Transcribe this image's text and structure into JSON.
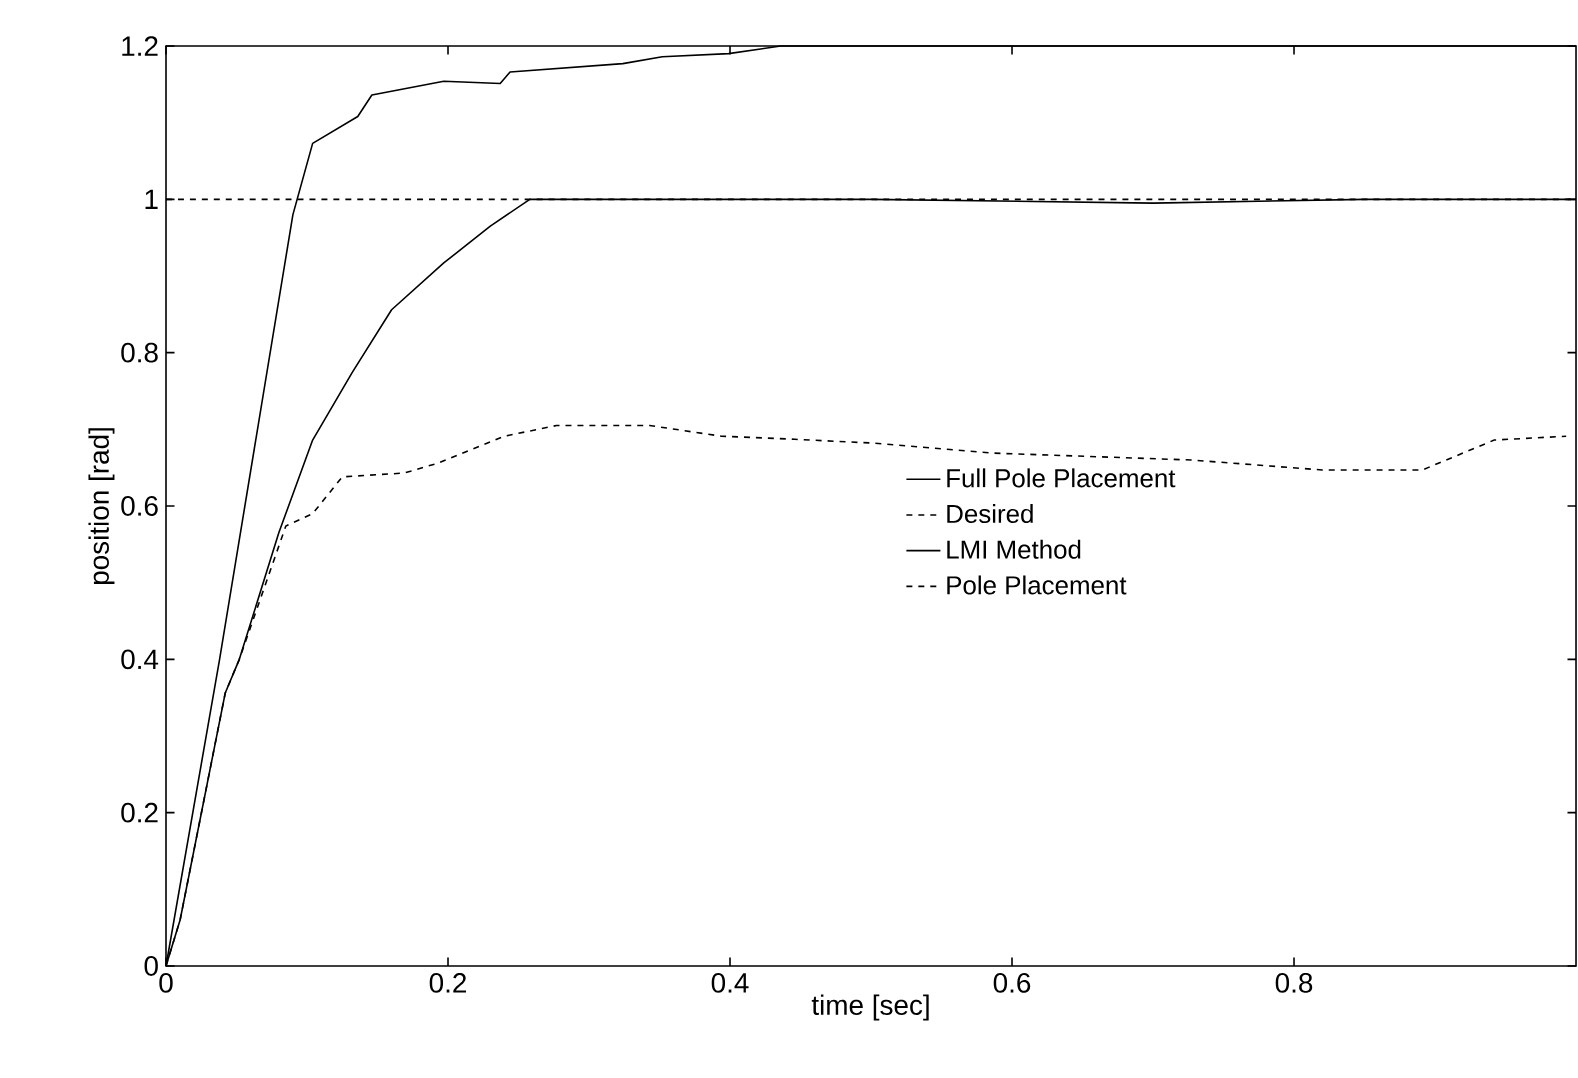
{
  "chart_data": {
    "type": "line",
    "xlabel": "time [sec]",
    "ylabel": "position [rad]",
    "xlim": [
      0,
      1
    ],
    "ylim": [
      0,
      1.2
    ],
    "xticks": [
      0,
      0.2,
      0.4,
      0.6,
      0.8
    ],
    "yticks": [
      0,
      0.2,
      0.4,
      0.6,
      0.8,
      1,
      1.2
    ],
    "legend": "right",
    "grid": false,
    "marker": "none",
    "series": [
      {
        "name": "Full Pole Placement",
        "color": "#000000",
        "line_style": "solid",
        "x": [
          0,
          0.038,
          0.09,
          0.104,
          0.136,
          0.146,
          0.197,
          0.237,
          0.244,
          0.324,
          0.352,
          0.399,
          0.436,
          1.0
        ],
        "values": [
          0,
          0.4,
          0.98,
          1.073,
          1.108,
          1.136,
          1.154,
          1.151,
          1.166,
          1.177,
          1.186,
          1.19,
          1.2,
          1.2
        ]
      },
      {
        "name": "Desired",
        "color": "#000000",
        "line_style": "dashed",
        "x": [
          0,
          1.0
        ],
        "values": [
          1,
          1
        ]
      },
      {
        "name": "LMI Method",
        "color": "#000000",
        "line_style": "solid",
        "x": [
          0,
          0.01,
          0.042,
          0.052,
          0.08,
          0.104,
          0.132,
          0.16,
          0.197,
          0.23,
          0.258,
          0.35,
          0.5,
          0.7,
          0.85,
          1.0
        ],
        "values": [
          0,
          0.06,
          0.356,
          0.4,
          0.565,
          0.686,
          0.774,
          0.856,
          0.917,
          0.965,
          1.0,
          1.0,
          1.0,
          0.995,
          1.0,
          1.0
        ]
      },
      {
        "name": "Pole Placement",
        "color": "#000000",
        "line_style": "dashed",
        "x": [
          0,
          0.01,
          0.042,
          0.052,
          0.085,
          0.104,
          0.125,
          0.169,
          0.193,
          0.24,
          0.277,
          0.343,
          0.394,
          0.446,
          0.502,
          0.586,
          0.727,
          0.82,
          0.891,
          0.942,
          0.993
        ],
        "values": [
          0,
          0.06,
          0.356,
          0.4,
          0.574,
          0.59,
          0.638,
          0.643,
          0.656,
          0.691,
          0.705,
          0.705,
          0.691,
          0.687,
          0.682,
          0.669,
          0.66,
          0.647,
          0.647,
          0.686,
          0.691
        ]
      }
    ]
  }
}
